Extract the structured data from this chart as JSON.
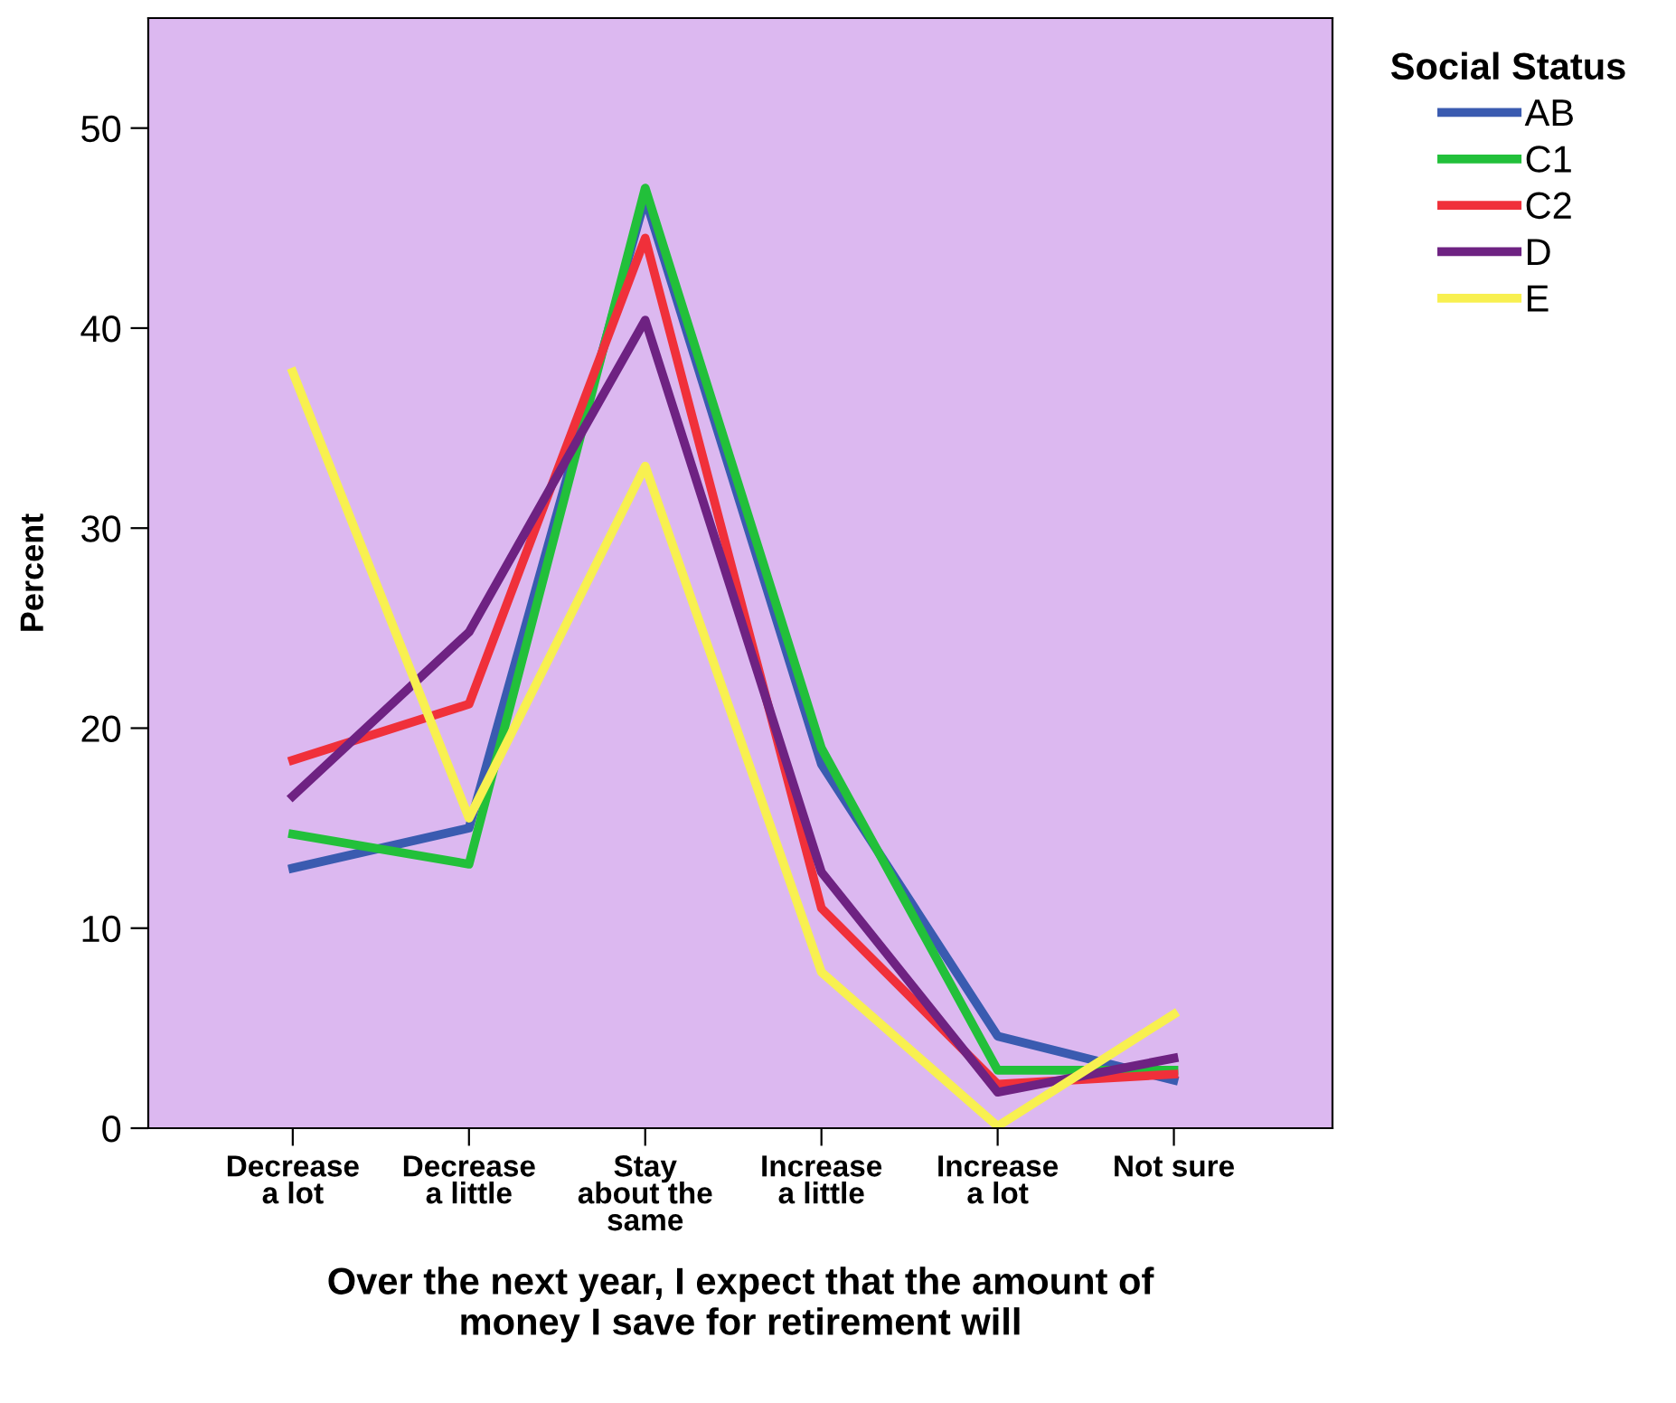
{
  "chart_data": {
    "type": "line",
    "xlabel": "Over the next year, I expect that the amount of\nmoney I save for retirement will",
    "ylabel": "Percent",
    "legend_title": "Social Status",
    "legend": "top right",
    "grid": false,
    "categories": [
      "Decrease\na lot",
      "Decrease\na little",
      "Stay\nabout the\nsame",
      "Increase\na little",
      "Increase\na lot",
      "Not sure"
    ],
    "ylim": [
      0,
      55.5
    ],
    "yticks": [
      0,
      10,
      20,
      30,
      40,
      50
    ],
    "series": [
      {
        "name": "AB",
        "color": "#3a5bb0",
        "values": [
          13.0,
          15.0,
          46.5,
          18.2,
          4.6,
          2.4
        ]
      },
      {
        "name": "C1",
        "color": "#22c03a",
        "values": [
          14.7,
          13.2,
          47.0,
          19.0,
          2.9,
          2.9
        ]
      },
      {
        "name": "C2",
        "color": "#f0303a",
        "values": [
          18.4,
          21.2,
          44.5,
          11.0,
          2.2,
          2.7
        ]
      },
      {
        "name": "D",
        "color": "#6e2282",
        "values": [
          16.6,
          24.8,
          40.4,
          12.8,
          1.8,
          3.5
        ]
      },
      {
        "name": "E",
        "color": "#f8f050",
        "values": [
          37.8,
          15.5,
          33.1,
          7.8,
          0.1,
          5.7
        ]
      }
    ]
  }
}
